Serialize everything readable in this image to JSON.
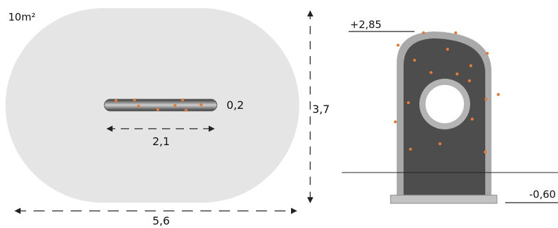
{
  "plan_view": {
    "area_label": "10m²",
    "element_length": "0,2",
    "element_width": "2,1",
    "zone_depth": "3,7",
    "zone_width": "5,6"
  },
  "elevation_view": {
    "top_height": "+2,85",
    "foundation_depth": "-0,60"
  },
  "colors": {
    "safety_zone_fill": "#e5e5e5",
    "panel_dark": "#4d4d4d",
    "panel_frame": "#a9a9a9",
    "climbing_holds": "#e07b3a",
    "dimension_lines": "#222222"
  }
}
